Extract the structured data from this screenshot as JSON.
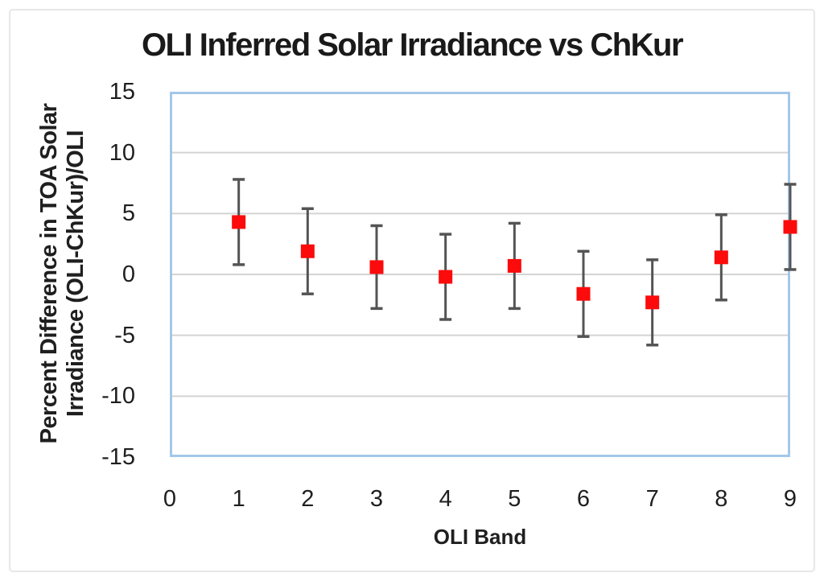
{
  "figure": {
    "background_color": "#FFFFFF",
    "outer_border_color": "#E7E7E7"
  },
  "chart_data": {
    "type": "scatter",
    "title": "OLI Inferred Solar Irradiance vs ChKur",
    "xlabel": "OLI Band",
    "ylabel": "Percent Difference in TOA Solar Irradiance (OLI-ChKur)/OLI",
    "ylabel_lines": [
      "Percent Difference in TOA Solar",
      "Irradiance (OLI-ChKur)/OLI"
    ],
    "x": [
      1,
      2,
      3,
      4,
      5,
      6,
      7,
      8,
      9
    ],
    "values": [
      4.3,
      1.9,
      0.6,
      -0.2,
      0.7,
      -1.6,
      -2.3,
      1.4,
      3.9
    ],
    "error_bars": [
      3.5,
      3.5,
      3.4,
      3.5,
      3.5,
      3.5,
      3.5,
      3.5,
      3.5
    ],
    "xlim": [
      0,
      9
    ],
    "ylim": [
      -15,
      15
    ],
    "x_ticks": [
      0,
      1,
      2,
      3,
      4,
      5,
      6,
      7,
      8,
      9
    ],
    "y_ticks": [
      15,
      10,
      5,
      0,
      -5,
      -10,
      -15
    ],
    "grid": true,
    "gridline_values": [
      10,
      5,
      0,
      -5,
      -10
    ],
    "legend": "none",
    "style": {
      "marker_shape": "square",
      "marker_color": "#FB0B0B",
      "marker_size": 17,
      "error_bar_color": "#545454",
      "error_bar_cap_width": 15,
      "plot_border_color": "#A3C7E8",
      "gridline_color": "#D4D4D4",
      "text_color": "#1F1F1F"
    }
  }
}
